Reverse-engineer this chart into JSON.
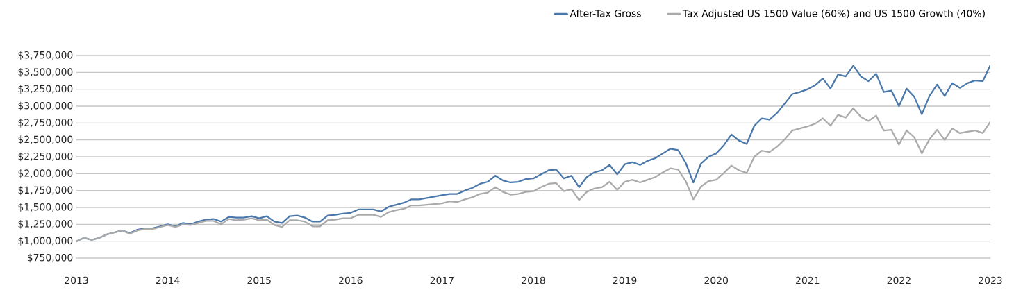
{
  "chart_data": {
    "type": "line",
    "x": [
      "2013-01",
      "2013-02",
      "2013-03",
      "2013-04",
      "2013-05",
      "2013-06",
      "2013-07",
      "2013-08",
      "2013-09",
      "2013-10",
      "2013-11",
      "2013-12",
      "2014-01",
      "2014-02",
      "2014-03",
      "2014-04",
      "2014-05",
      "2014-06",
      "2014-07",
      "2014-08",
      "2014-09",
      "2014-10",
      "2014-11",
      "2014-12",
      "2015-01",
      "2015-02",
      "2015-03",
      "2015-04",
      "2015-05",
      "2015-06",
      "2015-07",
      "2015-08",
      "2015-09",
      "2015-10",
      "2015-11",
      "2015-12",
      "2016-01",
      "2016-02",
      "2016-03",
      "2016-04",
      "2016-05",
      "2016-06",
      "2016-07",
      "2016-08",
      "2016-09",
      "2016-10",
      "2016-11",
      "2016-12",
      "2017-01",
      "2017-02",
      "2017-03",
      "2017-04",
      "2017-05",
      "2017-06",
      "2017-07",
      "2017-08",
      "2017-09",
      "2017-10",
      "2017-11",
      "2017-12",
      "2018-01",
      "2018-02",
      "2018-03",
      "2018-04",
      "2018-05",
      "2018-06",
      "2018-07",
      "2018-08",
      "2018-09",
      "2018-10",
      "2018-11",
      "2018-12",
      "2019-01",
      "2019-02",
      "2019-03",
      "2019-04",
      "2019-05",
      "2019-06",
      "2019-07",
      "2019-08",
      "2019-09",
      "2019-10",
      "2019-11",
      "2019-12",
      "2020-01",
      "2020-02",
      "2020-03",
      "2020-04",
      "2020-05",
      "2020-06",
      "2020-07",
      "2020-08",
      "2020-09",
      "2020-10",
      "2020-11",
      "2020-12",
      "2021-01",
      "2021-02",
      "2021-03",
      "2021-04",
      "2021-05",
      "2021-06",
      "2021-07",
      "2021-08",
      "2021-09",
      "2021-10",
      "2021-11",
      "2021-12",
      "2022-01",
      "2022-02",
      "2022-03",
      "2022-04",
      "2022-05",
      "2022-06",
      "2022-07",
      "2022-08",
      "2022-09",
      "2022-10",
      "2022-11",
      "2022-12",
      "2023-01"
    ],
    "series": [
      {
        "name": "After-Tax Gross",
        "color": "#4a78aa",
        "values": [
          1000000,
          1050000,
          1020000,
          1050000,
          1100000,
          1130000,
          1160000,
          1120000,
          1170000,
          1190000,
          1190000,
          1220000,
          1250000,
          1220000,
          1270000,
          1250000,
          1290000,
          1320000,
          1330000,
          1290000,
          1360000,
          1350000,
          1350000,
          1370000,
          1340000,
          1370000,
          1290000,
          1270000,
          1370000,
          1380000,
          1350000,
          1290000,
          1290000,
          1380000,
          1390000,
          1410000,
          1420000,
          1470000,
          1470000,
          1470000,
          1440000,
          1510000,
          1540000,
          1570000,
          1620000,
          1620000,
          1640000,
          1660000,
          1680000,
          1700000,
          1700000,
          1750000,
          1790000,
          1850000,
          1880000,
          1970000,
          1900000,
          1870000,
          1880000,
          1920000,
          1930000,
          1990000,
          2050000,
          2060000,
          1930000,
          1970000,
          1800000,
          1950000,
          2020000,
          2050000,
          2130000,
          1990000,
          2140000,
          2170000,
          2130000,
          2190000,
          2230000,
          2300000,
          2370000,
          2350000,
          2160000,
          1870000,
          2150000,
          2250000,
          2300000,
          2420000,
          2580000,
          2490000,
          2440000,
          2710000,
          2820000,
          2800000,
          2900000,
          3040000,
          3180000,
          3210000,
          3250000,
          3310000,
          3410000,
          3260000,
          3470000,
          3440000,
          3600000,
          3440000,
          3370000,
          3480000,
          3210000,
          3230000,
          3000000,
          3260000,
          3140000,
          2880000,
          3150000,
          3320000,
          3150000,
          3340000,
          3270000,
          3340000,
          3380000,
          3370000,
          3610000
        ]
      },
      {
        "name": "Tax Adjusted US 1500 Value (60%) and US 1500 Growth (40%)",
        "color": "#aaaaaa",
        "values": [
          1000000,
          1050000,
          1020000,
          1050000,
          1100000,
          1130000,
          1160000,
          1110000,
          1160000,
          1180000,
          1180000,
          1210000,
          1240000,
          1210000,
          1250000,
          1240000,
          1270000,
          1300000,
          1300000,
          1250000,
          1330000,
          1310000,
          1320000,
          1340000,
          1310000,
          1320000,
          1240000,
          1210000,
          1310000,
          1310000,
          1290000,
          1220000,
          1220000,
          1310000,
          1320000,
          1340000,
          1340000,
          1390000,
          1390000,
          1390000,
          1360000,
          1430000,
          1460000,
          1480000,
          1530000,
          1530000,
          1540000,
          1550000,
          1560000,
          1590000,
          1580000,
          1620000,
          1650000,
          1700000,
          1720000,
          1800000,
          1730000,
          1690000,
          1700000,
          1730000,
          1740000,
          1800000,
          1850000,
          1860000,
          1740000,
          1770000,
          1610000,
          1730000,
          1780000,
          1800000,
          1880000,
          1760000,
          1880000,
          1910000,
          1870000,
          1910000,
          1950000,
          2020000,
          2080000,
          2060000,
          1890000,
          1620000,
          1810000,
          1890000,
          1910000,
          2010000,
          2120000,
          2050000,
          2010000,
          2250000,
          2340000,
          2320000,
          2400000,
          2510000,
          2640000,
          2670000,
          2700000,
          2740000,
          2820000,
          2710000,
          2870000,
          2830000,
          2970000,
          2840000,
          2780000,
          2860000,
          2640000,
          2650000,
          2430000,
          2640000,
          2540000,
          2300000,
          2510000,
          2650000,
          2500000,
          2670000,
          2600000,
          2620000,
          2640000,
          2600000,
          2770000
        ]
      }
    ],
    "xlim": [
      "2013",
      "2023"
    ],
    "xticks": [
      "2013",
      "2014",
      "2015",
      "2016",
      "2017",
      "2018",
      "2019",
      "2020",
      "2021",
      "2022",
      "2023"
    ],
    "ylim": [
      750000,
      3750000
    ],
    "yticks": [
      {
        "value": 750000,
        "label": "$750,000"
      },
      {
        "value": 1000000,
        "label": "$1,000,000"
      },
      {
        "value": 1250000,
        "label": "$1,250,000"
      },
      {
        "value": 1500000,
        "label": "$1,500,000"
      },
      {
        "value": 1750000,
        "label": "$1,750,000"
      },
      {
        "value": 2000000,
        "label": "$2,000,000"
      },
      {
        "value": 2250000,
        "label": "$2,250,000"
      },
      {
        "value": 2500000,
        "label": "$2,500,000"
      },
      {
        "value": 2750000,
        "label": "$2,750,000"
      },
      {
        "value": 3000000,
        "label": "$3,000,000"
      },
      {
        "value": 3250000,
        "label": "$3,250,000"
      },
      {
        "value": 3500000,
        "label": "$3,500,000"
      },
      {
        "value": 3750000,
        "label": "$3,750,000"
      }
    ],
    "grid": "y",
    "legend": "top right",
    "marker": "none",
    "line_style": "solid"
  }
}
